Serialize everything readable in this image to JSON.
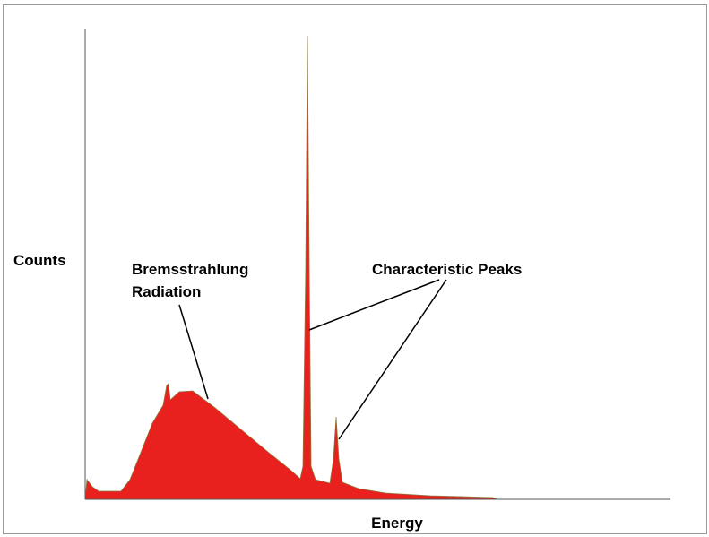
{
  "axes": {
    "y_label": "Counts",
    "x_label": "Energy"
  },
  "annotations": [
    {
      "lines": [
        "Bremsstrahlung",
        "Radiation"
      ]
    },
    {
      "text": "Characteristic Peaks"
    }
  ]
}
